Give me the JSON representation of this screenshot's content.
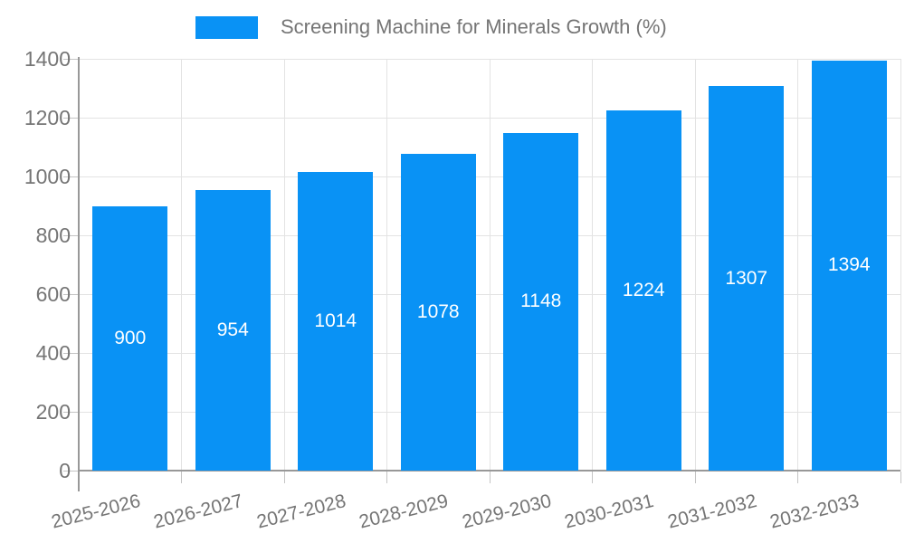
{
  "chart_data": {
    "type": "bar",
    "title": "Screening Machine for Minerals Growth (%)",
    "categories": [
      "2025-2026",
      "2026-2027",
      "2027-2028",
      "2028-2029",
      "2029-2030",
      "2030-2031",
      "2031-2032",
      "2032-2033"
    ],
    "values": [
      900,
      954,
      1014,
      1078,
      1148,
      1224,
      1307,
      1394
    ],
    "yticks": [
      0,
      200,
      400,
      600,
      800,
      1000,
      1200,
      1400
    ],
    "ylim": [
      0,
      1400
    ],
    "xlabel": "",
    "ylabel": "",
    "grid": true,
    "legend_position": "top-center",
    "bar_color": "#0992f5",
    "value_label_color": "#ffffff",
    "grid_color": "#e3e3e3",
    "axis_color": "#989898",
    "tick_color": "#c4c4c4",
    "text_color": "#757575"
  }
}
